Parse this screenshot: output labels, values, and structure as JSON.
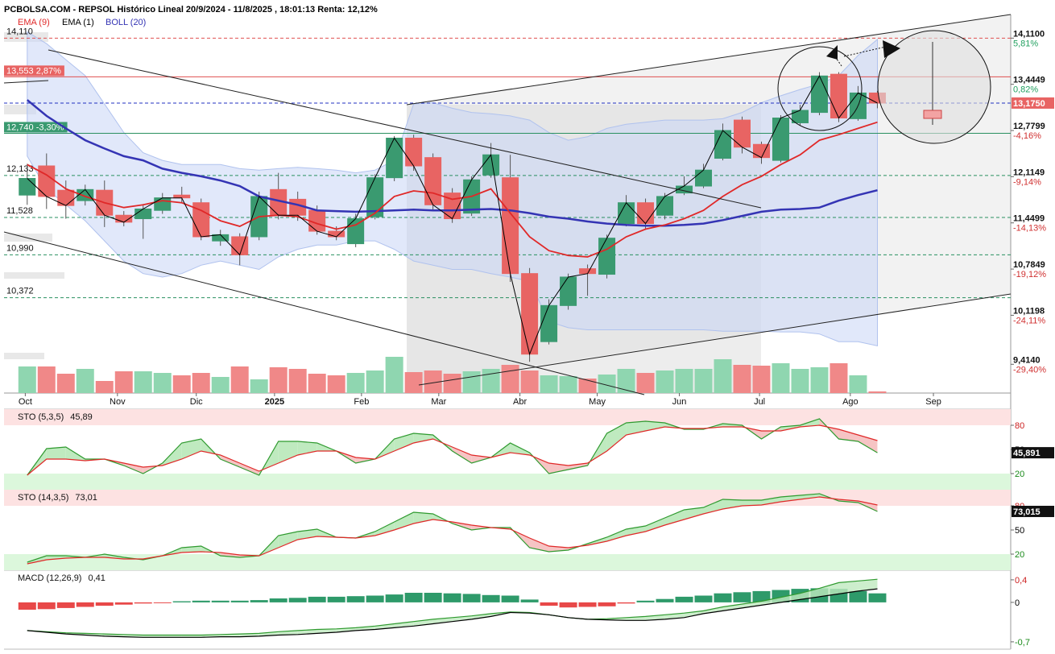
{
  "chart_data": [
    {
      "type": "candlestick",
      "title": "PCBOLSA.COM - REPSOL Histórico Lineal 20/9/2024 - 11/8/2025 , 18:01:13 Renta: 12,12%",
      "xlim": [
        -1.2,
        50.9
      ],
      "xticks": [
        {
          "value": -0.1,
          "label": "Oct"
        },
        {
          "value": 4.67,
          "label": "Nov"
        },
        {
          "value": 8.75,
          "label": "Dic"
        },
        {
          "value": 12.8,
          "label": "2025"
        },
        {
          "value": 17.3,
          "label": "Feb"
        },
        {
          "value": 21.3,
          "label": "Mar"
        },
        {
          "value": 25.5,
          "label": "Abr"
        },
        {
          "value": 29.5,
          "label": "May"
        },
        {
          "value": 33.75,
          "label": "Jun"
        },
        {
          "value": 37.9,
          "label": "Jul"
        },
        {
          "value": 42.6,
          "label": "Ago"
        },
        {
          "value": 46.9,
          "label": "Sep"
        }
      ],
      "ylim": [
        9.0,
        14.45
      ],
      "yticks": [
        {
          "value": 14.11,
          "label": "14,1100"
        },
        {
          "value": 13.4449,
          "label": "13,4449"
        },
        {
          "value": 12.7799,
          "label": "12,7799"
        },
        {
          "value": 12.1149,
          "label": "12,1149"
        },
        {
          "value": 11.4499,
          "label": "11,4499"
        },
        {
          "value": 10.7849,
          "label": "10,7849"
        },
        {
          "value": 10.1198,
          "label": "10,1198"
        },
        {
          "value": 9.414,
          "label": "9,4140"
        }
      ],
      "ytick_changes": [
        "5,81%",
        "0,82%",
        "-4,16%",
        "-9,14%",
        "-14,13%",
        "-19,12%",
        "-24,11%",
        "-29,40%"
      ],
      "up_color": "#3a9a70",
      "down_color": "#e86463",
      "open": [
        11.85,
        12.27,
        11.92,
        11.77,
        11.92,
        11.56,
        11.51,
        11.63,
        11.85,
        11.74,
        11.19,
        11.25,
        11.25,
        11.93,
        11.79,
        11.63,
        11.33,
        11.15,
        11.54,
        12.1,
        12.67,
        12.39,
        11.88,
        11.59,
        12.14,
        12.1,
        10.72,
        9.74,
        10.26,
        10.79,
        10.71,
        11.44,
        11.74,
        11.56,
        11.88,
        11.98,
        12.38,
        12.93,
        12.58,
        12.35,
        12.89,
        13.04,
        13.59,
        12.95,
        13.32
      ],
      "high": [
        12.3,
        12.45,
        12.06,
        12.0,
        12.06,
        11.62,
        11.72,
        11.88,
        11.97,
        11.8,
        11.35,
        11.3,
        11.9,
        12.17,
        11.9,
        11.7,
        11.4,
        11.58,
        12.15,
        12.7,
        12.72,
        12.45,
        11.95,
        12.12,
        12.6,
        12.43,
        10.8,
        10.35,
        10.72,
        10.85,
        11.28,
        11.85,
        11.8,
        11.88,
        12.12,
        12.3,
        12.88,
        12.98,
        12.62,
        13.0,
        13.15,
        13.62,
        13.62,
        13.42,
        13.35
      ],
      "low": [
        11.71,
        11.65,
        11.51,
        11.7,
        11.39,
        11.4,
        11.22,
        11.58,
        11.74,
        11.2,
        11.12,
        10.84,
        11.2,
        11.5,
        11.48,
        11.28,
        11.2,
        11.1,
        11.5,
        12.05,
        12.2,
        11.62,
        11.45,
        11.55,
        12.1,
        10.6,
        9.45,
        9.7,
        10.2,
        10.4,
        10.65,
        11.4,
        11.35,
        11.5,
        11.85,
        11.95,
        12.35,
        12.45,
        12.3,
        12.32,
        12.85,
        13.0,
        12.9,
        12.92,
        13.1
      ],
      "close": [
        12.09,
        11.83,
        11.7,
        11.93,
        11.56,
        11.46,
        11.65,
        11.81,
        11.81,
        11.25,
        11.28,
        10.99,
        11.83,
        11.56,
        11.56,
        11.33,
        11.25,
        11.51,
        12.1,
        12.67,
        12.27,
        11.71,
        11.51,
        12.07,
        12.43,
        10.72,
        9.56,
        10.26,
        10.67,
        10.72,
        11.23,
        11.74,
        11.44,
        11.83,
        11.98,
        12.21,
        12.78,
        12.54,
        12.39,
        12.96,
        13.07,
        13.565,
        12.96,
        13.32,
        13.175
      ],
      "series": [
        {
          "name": "EMA (9)",
          "color": "#e02828",
          "values": [
            12.29,
            12.14,
            11.94,
            11.83,
            11.74,
            11.67,
            11.71,
            11.77,
            11.74,
            11.63,
            11.48,
            11.4,
            11.54,
            11.56,
            11.54,
            11.44,
            11.36,
            11.42,
            11.59,
            11.83,
            11.91,
            11.88,
            11.79,
            11.83,
            11.94,
            11.59,
            11.25,
            11.05,
            10.98,
            10.96,
            11.07,
            11.25,
            11.36,
            11.42,
            11.51,
            11.63,
            11.83,
            12.0,
            12.12,
            12.29,
            12.43,
            12.64,
            12.72,
            12.81,
            12.9
          ]
        },
        {
          "name": "EMA (1)",
          "color": "#000000",
          "values": [
            12.09,
            11.83,
            11.7,
            11.93,
            11.56,
            11.46,
            11.65,
            11.81,
            11.81,
            11.25,
            11.28,
            10.99,
            11.83,
            11.56,
            11.56,
            11.33,
            11.25,
            11.51,
            12.1,
            12.67,
            12.27,
            11.71,
            11.51,
            12.07,
            12.43,
            10.72,
            9.56,
            10.26,
            10.67,
            10.72,
            11.23,
            11.74,
            11.44,
            11.83,
            11.98,
            12.21,
            12.78,
            12.54,
            12.39,
            12.96,
            13.07,
            13.565,
            12.96,
            13.32,
            13.175
          ]
        },
        {
          "name": "BOLL (20)",
          "color": "#3434b4",
          "band_color": "#c9d6f5",
          "values": [
            13.22,
            12.99,
            12.81,
            12.64,
            12.52,
            12.41,
            12.35,
            12.23,
            12.17,
            12.12,
            12.06,
            11.98,
            11.83,
            11.77,
            11.71,
            11.63,
            11.62,
            11.61,
            11.62,
            11.63,
            11.64,
            11.63,
            11.63,
            11.64,
            11.65,
            11.63,
            11.59,
            11.54,
            11.51,
            11.47,
            11.44,
            11.42,
            11.41,
            11.41,
            11.42,
            11.44,
            11.49,
            11.55,
            11.61,
            11.64,
            11.65,
            11.67,
            11.77,
            11.85,
            11.92
          ],
          "upper": [
            14.2,
            14.03,
            13.8,
            13.57,
            13.16,
            12.75,
            12.46,
            12.35,
            12.29,
            12.29,
            12.29,
            12.23,
            12.21,
            12.23,
            12.25,
            12.23,
            12.21,
            12.17,
            12.21,
            12.35,
            13.16,
            13.18,
            13.1,
            13.04,
            13.02,
            12.99,
            12.93,
            12.75,
            12.64,
            12.69,
            12.81,
            12.87,
            12.9,
            12.93,
            12.93,
            12.93,
            12.95,
            13.04,
            13.18,
            13.28,
            13.37,
            13.45,
            13.57,
            13.86,
            14.09
          ],
          "lower": [
            12.41,
            11.94,
            11.71,
            11.48,
            11.19,
            10.9,
            10.72,
            10.67,
            10.72,
            10.84,
            10.9,
            10.84,
            10.78,
            10.96,
            11.07,
            11.13,
            11.13,
            11.19,
            11.19,
            11.07,
            10.9,
            10.84,
            10.78,
            10.78,
            10.72,
            10.67,
            10.61,
            10.03,
            9.94,
            9.91,
            9.91,
            9.91,
            9.91,
            9.91,
            9.91,
            9.91,
            9.89,
            9.89,
            9.89,
            9.88,
            9.88,
            9.85,
            9.74,
            9.74,
            9.68
          ]
        }
      ],
      "levels": [
        {
          "value": 14.11,
          "label": "14,110",
          "color": "#e05050",
          "dash": true
        },
        {
          "value": 13.553,
          "label": "13,553 2,87%",
          "color": "#e05050",
          "dash": false,
          "box": "#e86463"
        },
        {
          "value": 13.175,
          "label": "13,1750",
          "color": "#2030c0",
          "dash": true,
          "box": "#e86463",
          "side": "right"
        },
        {
          "value": 12.74,
          "label": "12,740 -3,30%",
          "color": "#2a9060",
          "dash": false,
          "box": "#3a9a70"
        },
        {
          "value": 12.133,
          "label": "12,133",
          "color": "#2a9060",
          "dash": true
        },
        {
          "value": 11.528,
          "label": "11,528",
          "color": "#2a9060",
          "dash": true
        },
        {
          "value": 10.99,
          "label": "10,990",
          "color": "#2a9060",
          "dash": true
        },
        {
          "value": 10.372,
          "label": "10,372",
          "color": "#2a9060",
          "dash": true
        }
      ]
    },
    {
      "type": "volume",
      "ylim": [
        0,
        50
      ],
      "values": [
        33,
        33,
        24,
        30,
        15,
        27,
        27,
        25,
        22,
        25,
        20,
        33,
        17,
        32,
        30,
        24,
        22,
        25,
        28,
        45,
        26,
        28,
        24,
        27,
        30,
        35,
        28,
        22,
        21,
        18,
        23,
        30,
        25,
        28,
        30,
        30,
        42,
        35,
        34,
        37,
        30,
        32,
        37,
        22,
        2
      ],
      "up_color": "#8fd6b0",
      "down_color": "#f08888"
    },
    {
      "type": "line",
      "title": "STO (5,3,5)",
      "value_label": "45,89",
      "last_label": "45,891",
      "ylim": [
        0,
        100
      ],
      "yticks": [
        20,
        50,
        80
      ],
      "ytick_colors": [
        "#1a8a1a",
        "#000000",
        "#cc2020"
      ],
      "zones": [
        {
          "from": 80,
          "to": 100,
          "color": "#fde2e2"
        },
        {
          "from": 0,
          "to": 20,
          "color": "#dcf7dc"
        }
      ],
      "fill_up": "#bfeabf",
      "fill_down": "#f6c4c4",
      "series": [
        {
          "color": "#2f9a2f",
          "values": [
            18,
            51,
            53,
            38,
            38,
            30,
            20,
            33,
            58,
            63,
            38,
            28,
            18,
            60,
            60,
            58,
            48,
            33,
            38,
            63,
            70,
            68,
            48,
            33,
            40,
            58,
            46,
            20,
            25,
            30,
            70,
            83,
            85,
            83,
            75,
            75,
            82,
            80,
            63,
            78,
            80,
            88,
            63,
            60,
            45.891
          ]
        },
        {
          "color": "#e02828",
          "values": [
            18,
            38,
            38,
            36,
            38,
            33,
            28,
            30,
            38,
            48,
            43,
            33,
            23,
            33,
            43,
            48,
            48,
            40,
            38,
            48,
            58,
            63,
            53,
            43,
            40,
            46,
            43,
            33,
            30,
            33,
            48,
            68,
            73,
            78,
            76,
            76,
            78,
            78,
            73,
            73,
            78,
            80,
            75,
            68,
            61
          ]
        }
      ]
    },
    {
      "type": "line",
      "title": "STO (14,3,5)",
      "value_label": "73,01",
      "last_label": "73,015",
      "ylim": [
        0,
        100
      ],
      "yticks": [
        20,
        50,
        80
      ],
      "ytick_colors": [
        "#1a8a1a",
        "#000000",
        "#cc2020"
      ],
      "zones": [
        {
          "from": 80,
          "to": 100,
          "color": "#fde2e2"
        },
        {
          "from": 0,
          "to": 20,
          "color": "#dcf7dc"
        }
      ],
      "fill_up": "#bfeabf",
      "fill_down": "#f6c4c4",
      "series": [
        {
          "color": "#2f9a2f",
          "values": [
            10,
            18,
            18,
            16,
            20,
            16,
            13,
            18,
            28,
            30,
            18,
            16,
            18,
            43,
            48,
            51,
            41,
            40,
            48,
            60,
            72,
            70,
            58,
            50,
            53,
            53,
            28,
            23,
            25,
            33,
            41,
            51,
            55,
            65,
            75,
            78,
            88,
            87,
            87,
            91,
            93,
            95,
            86,
            84,
            73.015
          ]
        },
        {
          "color": "#e02828",
          "values": [
            8,
            13,
            15,
            16,
            16,
            14,
            14,
            18,
            22,
            23,
            22,
            19,
            18,
            28,
            38,
            42,
            41,
            40,
            43,
            50,
            58,
            63,
            60,
            56,
            53,
            51,
            40,
            30,
            28,
            31,
            36,
            43,
            48,
            56,
            63,
            70,
            76,
            80,
            81,
            85,
            88,
            91,
            88,
            86,
            81
          ]
        }
      ]
    },
    {
      "type": "macd",
      "title": "MACD (12,26,9)",
      "value_label": "0,41",
      "ylim": [
        -0.83,
        0.57
      ],
      "yticks": [
        {
          "value": 0.4,
          "label": "0,4"
        },
        0,
        {
          "value": -0.7,
          "label": "-0,7"
        }
      ],
      "ytick_colors": [
        "#cc2020",
        "#000000",
        "#1a8a1a"
      ],
      "up_color": "#2e9a6a",
      "down_color": "#e84848",
      "fill_color": "#bfeabf",
      "histogram": [
        -0.13,
        -0.12,
        -0.1,
        -0.08,
        -0.06,
        -0.04,
        -0.02,
        -0.01,
        0.02,
        0.03,
        0.03,
        0.03,
        0.04,
        0.07,
        0.08,
        0.1,
        0.1,
        0.11,
        0.12,
        0.14,
        0.17,
        0.17,
        0.16,
        0.15,
        0.13,
        0.12,
        0.05,
        -0.06,
        -0.09,
        -0.08,
        -0.07,
        -0.02,
        0.03,
        0.06,
        0.1,
        0.12,
        0.16,
        0.18,
        0.2,
        0.22,
        0.24,
        0.25,
        0.24,
        0.2,
        0.16
      ],
      "series": [
        {
          "color": "#2f9a2f",
          "values": [
            -0.5,
            -0.52,
            -0.54,
            -0.55,
            -0.56,
            -0.57,
            -0.58,
            -0.58,
            -0.58,
            -0.58,
            -0.57,
            -0.56,
            -0.55,
            -0.52,
            -0.5,
            -0.48,
            -0.47,
            -0.45,
            -0.42,
            -0.38,
            -0.34,
            -0.3,
            -0.27,
            -0.24,
            -0.2,
            -0.17,
            -0.18,
            -0.22,
            -0.27,
            -0.3,
            -0.29,
            -0.27,
            -0.25,
            -0.22,
            -0.19,
            -0.15,
            -0.08,
            -0.03,
            0.02,
            0.09,
            0.16,
            0.25,
            0.35,
            0.38,
            0.41
          ]
        },
        {
          "color": "#000000",
          "values": [
            -0.5,
            -0.53,
            -0.56,
            -0.58,
            -0.6,
            -0.61,
            -0.62,
            -0.62,
            -0.62,
            -0.62,
            -0.61,
            -0.61,
            -0.6,
            -0.58,
            -0.57,
            -0.55,
            -0.53,
            -0.5,
            -0.48,
            -0.45,
            -0.42,
            -0.38,
            -0.34,
            -0.3,
            -0.25,
            -0.18,
            -0.19,
            -0.22,
            -0.27,
            -0.3,
            -0.31,
            -0.32,
            -0.32,
            -0.3,
            -0.27,
            -0.2,
            -0.15,
            -0.1,
            -0.05,
            0,
            0.05,
            0.1,
            0.15,
            0.2,
            0.24
          ]
        }
      ]
    }
  ]
}
